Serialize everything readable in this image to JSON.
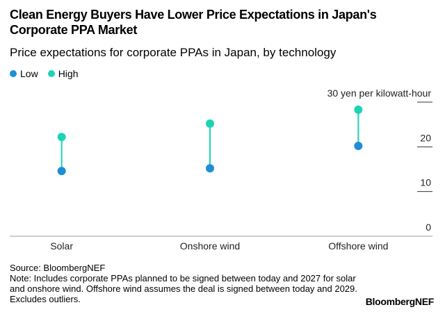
{
  "chart_data": {
    "type": "dumbbell",
    "title": "Clean Energy Buyers Have Lower Price Expectations in Japan's Corporate PPA Market",
    "subtitle": "Price expectations for corporate PPAs in Japan, by technology",
    "categories": [
      "Solar",
      "Onshore wind",
      "Offshore wind"
    ],
    "series": [
      {
        "name": "Low",
        "color": "#1f8ed8",
        "values": [
          14.6,
          15.2,
          20.2
        ]
      },
      {
        "name": "High",
        "color": "#1dd3b5",
        "values": [
          22.2,
          25.2,
          28.3
        ]
      }
    ],
    "ylim": [
      0,
      30
    ],
    "yticks": [
      0,
      10,
      20,
      {
        "value": 30,
        "label": "30 yen per kilowatt-hour"
      }
    ],
    "source": "Source: BloombergNEF",
    "note": "Note: Includes corporate PPAs planned to be signed between today and 2027 for solar and onshore wind. Offshore wind assumes the deal is signed between today and 2029. Excludes outliers.",
    "brand": "BloombergNEF"
  }
}
